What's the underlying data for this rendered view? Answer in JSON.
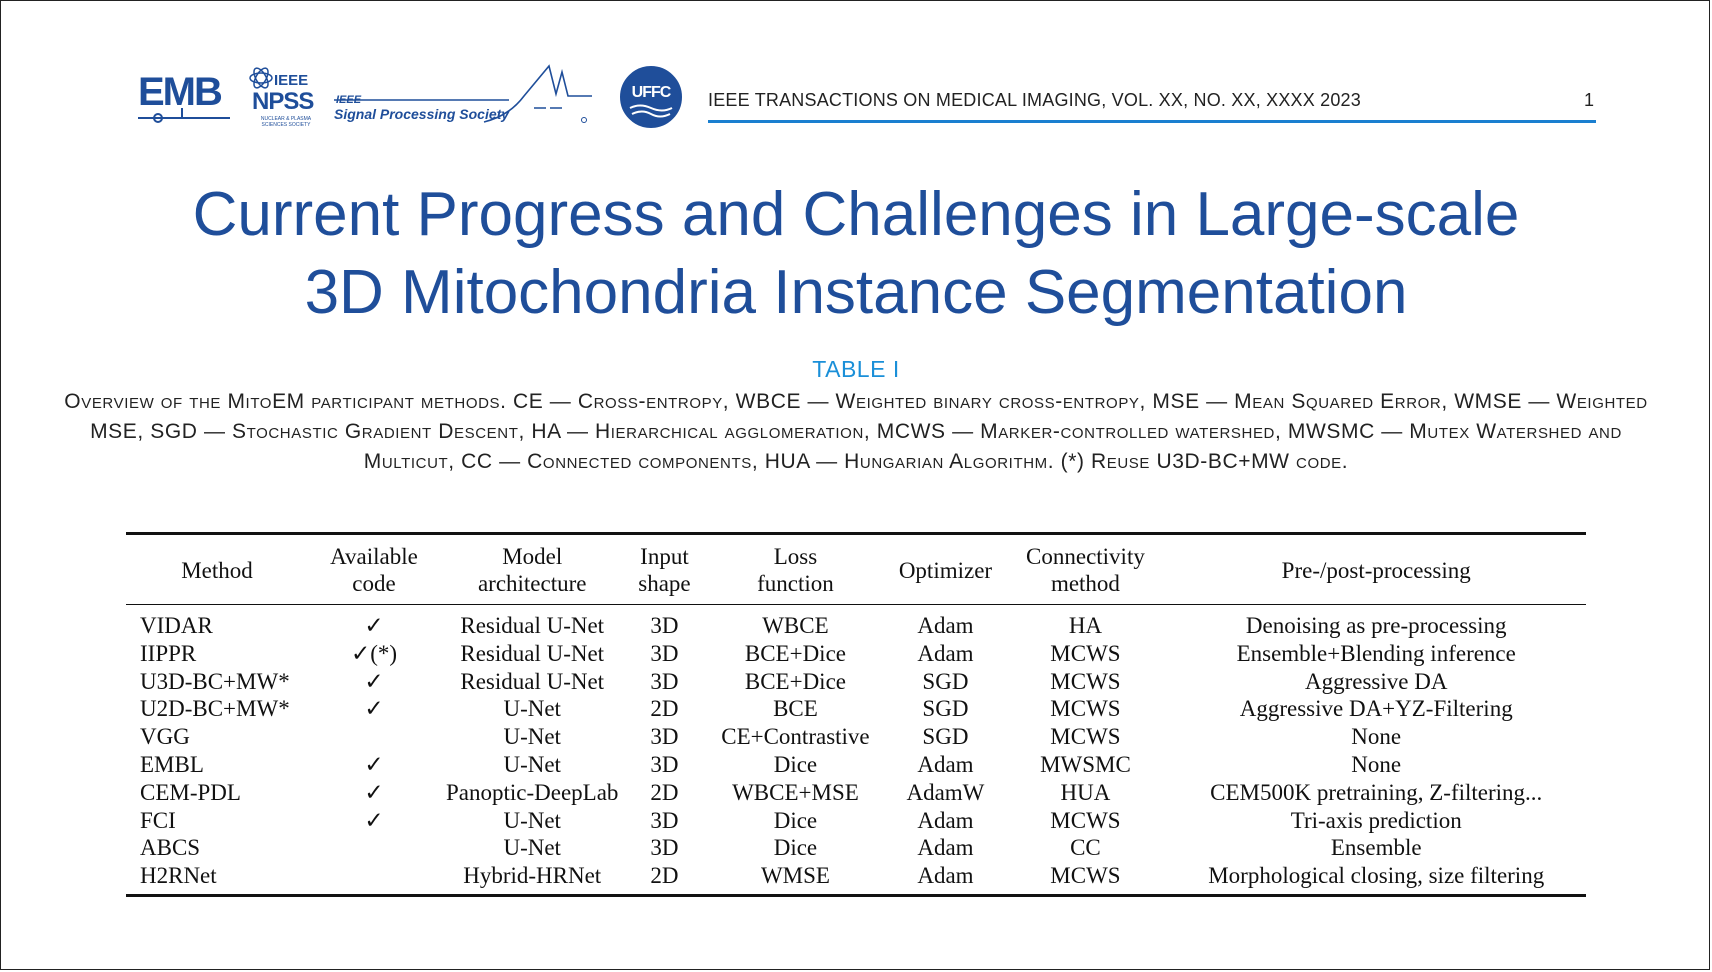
{
  "header": {
    "logos": {
      "emb": "EMB",
      "npss_ieee": "IEEE",
      "npss": "NPSS",
      "npss_sub": "NUCLEAR & PLASMA SCIENCES SOCIETY",
      "sps_ieee": "IEEE",
      "sps": "Signal Processing Society",
      "uffc": "UFFC"
    },
    "journal": "IEEE TRANSACTIONS ON MEDICAL IMAGING, VOL. XX, NO. XX, XXXX 2023",
    "page_number": "1",
    "accent_color": "#1a7fd0",
    "brand_color": "#1f4e9a"
  },
  "paper": {
    "title_line1": "Current Progress and Challenges in Large-scale",
    "title_line2": "3D Mitochondria Instance Segmentation"
  },
  "table": {
    "label": "TABLE I",
    "caption": "Overview of the MitoEM participant methods. CE — Cross-entropy, WBCE — Weighted binary cross-entropy, MSE — Mean Squared Error, WMSE — Weighted MSE, SGD — Stochastic Gradient Descent, HA — Hierarchical agglomeration, MCWS — Marker-controlled watershed, MWSMC — Mutex Watershed and Multicut, CC — Connected components, HUA — Hungarian Algorithm. (*) Reuse U3D-BC+MW code.",
    "headers": {
      "method": "Method",
      "code_1": "Available",
      "code_2": "code",
      "arch_1": "Model",
      "arch_2": "architecture",
      "input_1": "Input",
      "input_2": "shape",
      "loss_1": "Loss",
      "loss_2": "function",
      "optimizer": "Optimizer",
      "conn_1": "Connectivity",
      "conn_2": "method",
      "proc": "Pre-/post-processing"
    },
    "rows": [
      {
        "method": "VIDAR",
        "code": "✓",
        "arch": "Residual U-Net",
        "input": "3D",
        "loss": "WBCE",
        "optimizer": "Adam",
        "conn": "HA",
        "proc": "Denoising as pre-processing"
      },
      {
        "method": "IIPPR",
        "code": "✓(*)",
        "arch": "Residual U-Net",
        "input": "3D",
        "loss": "BCE+Dice",
        "optimizer": "Adam",
        "conn": "MCWS",
        "proc": "Ensemble+Blending inference"
      },
      {
        "method": "U3D-BC+MW*",
        "code": "✓",
        "arch": "Residual U-Net",
        "input": "3D",
        "loss": "BCE+Dice",
        "optimizer": "SGD",
        "conn": "MCWS",
        "proc": "Aggressive DA"
      },
      {
        "method": "U2D-BC+MW*",
        "code": "✓",
        "arch": "U-Net",
        "input": "2D",
        "loss": "BCE",
        "optimizer": "SGD",
        "conn": "MCWS",
        "proc": "Aggressive DA+YZ-Filtering"
      },
      {
        "method": "VGG",
        "code": "",
        "arch": "U-Net",
        "input": "3D",
        "loss": "CE+Contrastive",
        "optimizer": "SGD",
        "conn": "MCWS",
        "proc": "None"
      },
      {
        "method": "EMBL",
        "code": "✓",
        "arch": "U-Net",
        "input": "3D",
        "loss": "Dice",
        "optimizer": "Adam",
        "conn": "MWSMC",
        "proc": "None"
      },
      {
        "method": "CEM-PDL",
        "code": "✓",
        "arch": "Panoptic-DeepLab",
        "input": "2D",
        "loss": "WBCE+MSE",
        "optimizer": "AdamW",
        "conn": "HUA",
        "proc": "CEM500K pretraining, Z-filtering..."
      },
      {
        "method": "FCI",
        "code": "✓",
        "arch": "U-Net",
        "input": "3D",
        "loss": "Dice",
        "optimizer": "Adam",
        "conn": "MCWS",
        "proc": "Tri-axis prediction"
      },
      {
        "method": "ABCS",
        "code": "",
        "arch": "U-Net",
        "input": "3D",
        "loss": "Dice",
        "optimizer": "Adam",
        "conn": "CC",
        "proc": "Ensemble"
      },
      {
        "method": "H2RNet",
        "code": "",
        "arch": "Hybrid-HRNet",
        "input": "2D",
        "loss": "WMSE",
        "optimizer": "Adam",
        "conn": "MCWS",
        "proc": "Morphological closing, size filtering"
      }
    ]
  }
}
